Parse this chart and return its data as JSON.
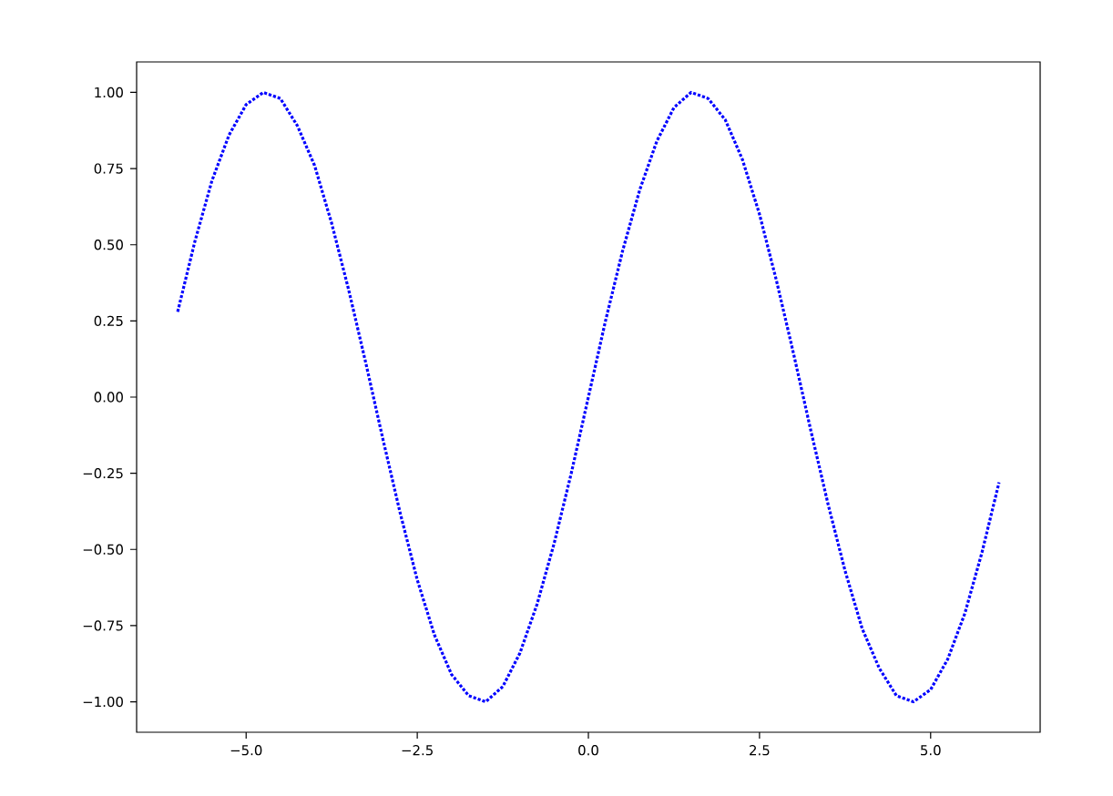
{
  "chart_data": {
    "type": "line",
    "color": "#0000ff",
    "line_style": "dotted",
    "marker": "none",
    "x": [
      -6,
      -5.75,
      -5.5,
      -5.25,
      -5,
      -4.75,
      -4.5,
      -4.25,
      -4,
      -3.75,
      -3.5,
      -3.25,
      -3,
      -2.75,
      -2.5,
      -2.25,
      -2,
      -1.75,
      -1.5,
      -1.25,
      -1,
      -0.75,
      -0.5,
      -0.25,
      0,
      0.25,
      0.5,
      0.75,
      1,
      1.25,
      1.5,
      1.75,
      2,
      2.25,
      2.5,
      2.75,
      3,
      3.25,
      3.5,
      3.75,
      4,
      4.25,
      4.5,
      4.75,
      5,
      5.25,
      5.5,
      5.75,
      6
    ],
    "values": [
      0.28,
      0.51,
      0.71,
      0.86,
      0.96,
      1.0,
      0.98,
      0.89,
      0.76,
      0.57,
      0.35,
      0.11,
      -0.14,
      -0.38,
      -0.6,
      -0.78,
      -0.91,
      -0.98,
      -1.0,
      -0.95,
      -0.84,
      -0.68,
      -0.48,
      -0.25,
      0,
      0.25,
      0.48,
      0.68,
      0.84,
      0.95,
      1.0,
      0.98,
      0.91,
      0.78,
      0.6,
      0.38,
      0.14,
      -0.11,
      -0.35,
      -0.57,
      -0.76,
      -0.89,
      -0.98,
      -1.0,
      -0.96,
      -0.86,
      -0.71,
      -0.51,
      -0.28
    ],
    "xlim": [
      -6.6,
      6.6
    ],
    "ylim": [
      -1.1,
      1.1
    ],
    "xticks": [
      {
        "value": -5,
        "label": "−5.0"
      },
      {
        "value": -2.5,
        "label": "−2.5"
      },
      {
        "value": 0,
        "label": "0.0"
      },
      {
        "value": 2.5,
        "label": "2.5"
      },
      {
        "value": 5,
        "label": "5.0"
      }
    ],
    "yticks": [
      {
        "value": -1,
        "label": "−1.00"
      },
      {
        "value": -0.75,
        "label": "−0.75"
      },
      {
        "value": -0.5,
        "label": "−0.50"
      },
      {
        "value": -0.25,
        "label": "−0.25"
      },
      {
        "value": 0,
        "label": "0.00"
      },
      {
        "value": 0.25,
        "label": "0.25"
      },
      {
        "value": 0.5,
        "label": "0.50"
      },
      {
        "value": 0.75,
        "label": "0.75"
      },
      {
        "value": 1,
        "label": "1.00"
      }
    ]
  }
}
